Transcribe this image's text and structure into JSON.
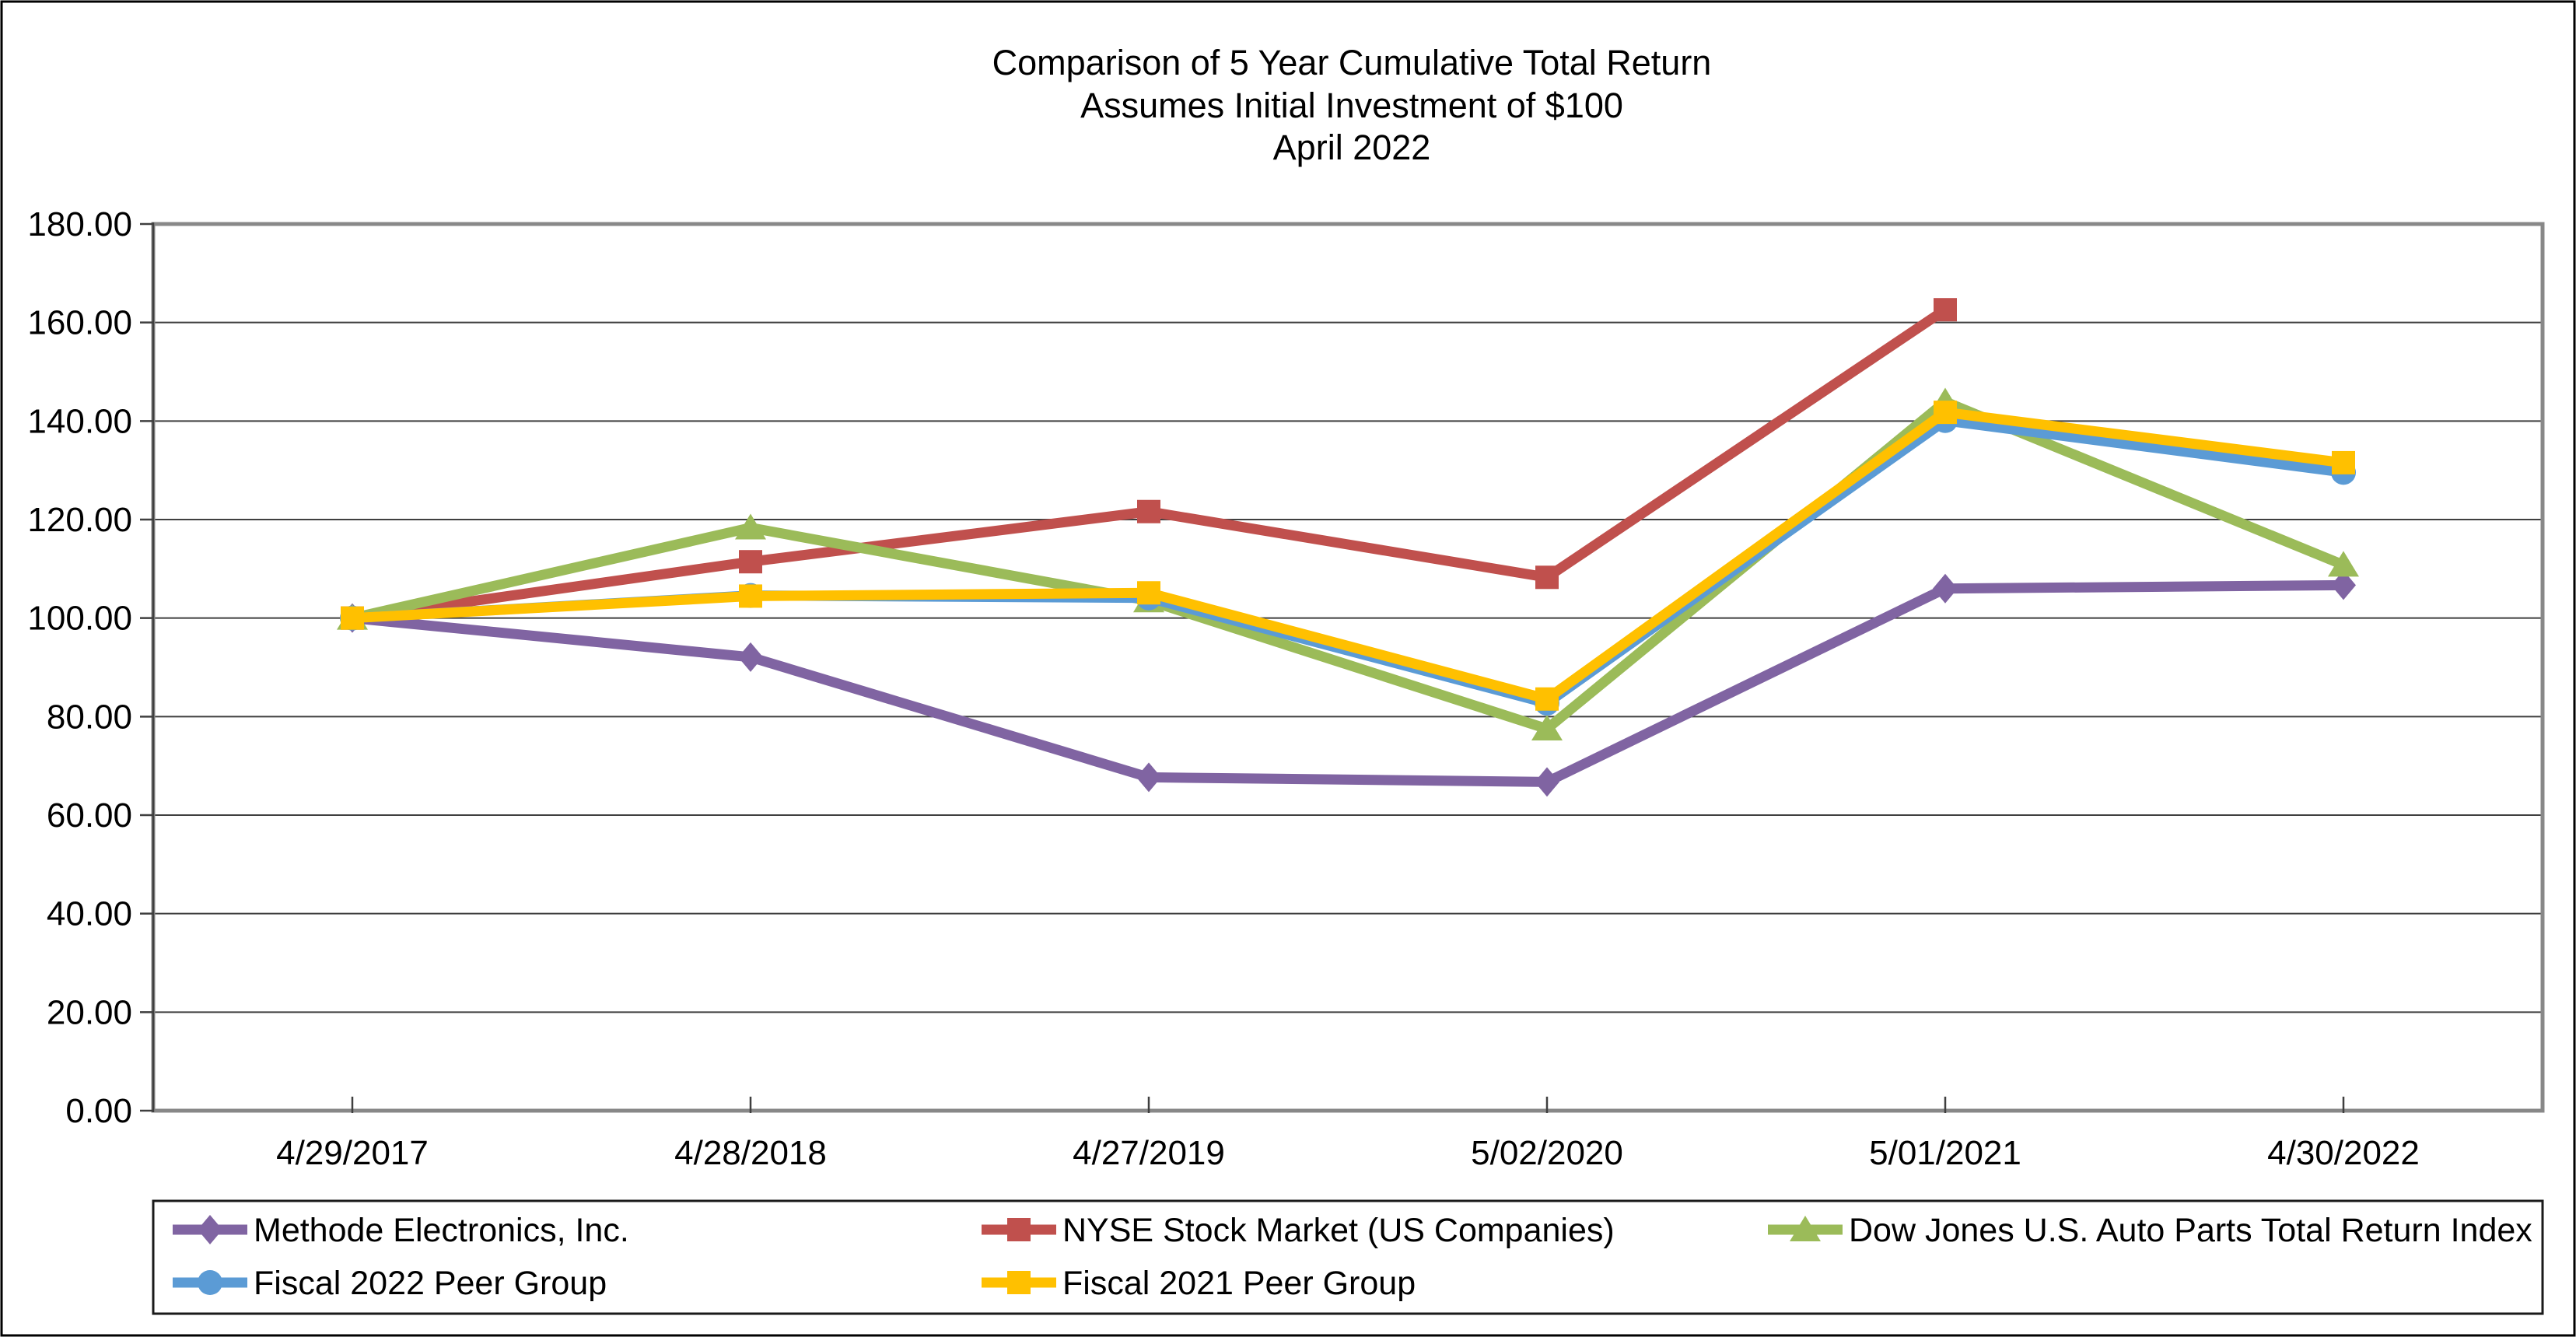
{
  "title": {
    "line1": "Comparison of 5 Year Cumulative Total Return",
    "line2": "Assumes Initial Investment of $100",
    "line3": "April 2022"
  },
  "chart_data": {
    "type": "line",
    "categories": [
      "4/29/2017",
      "4/28/2018",
      "4/27/2019",
      "5/02/2020",
      "5/01/2021",
      "4/30/2022"
    ],
    "series": [
      {
        "name": "Methode Electronics, Inc.",
        "marker": "diamond",
        "color": "#8064A2",
        "values": [
          100.0,
          92.07,
          67.67,
          66.74,
          105.99,
          106.68
        ]
      },
      {
        "name": "NYSE Stock Market (US Companies)",
        "marker": "square",
        "color": "#C0504D",
        "values": [
          100.0,
          111.44,
          121.62,
          108.27,
          162.6,
          null
        ]
      },
      {
        "name": "Dow Jones U.S. Auto Parts Total Return Index",
        "marker": "triangle",
        "color": "#9BBB59",
        "values": [
          100.0,
          118.34,
          103.54,
          77.52,
          143.92,
          110.78
        ]
      },
      {
        "name": "Fiscal 2022 Peer Group",
        "marker": "circle",
        "color": "#5B9BD5",
        "values": [
          100.0,
          104.59,
          104.09,
          82.73,
          140.09,
          129.58
        ]
      },
      {
        "name": "Fiscal 2021 Peer Group",
        "marker": "square",
        "color": "#FFC000",
        "values": [
          100.0,
          104.46,
          105.12,
          83.57,
          141.77,
          131.54
        ]
      }
    ],
    "ylim": [
      0,
      180
    ],
    "ytick_step": 20,
    "ytick_labels": [
      "0.00",
      "20.00",
      "40.00",
      "60.00",
      "80.00",
      "100.00",
      "120.00",
      "140.00",
      "160.00",
      "180.00"
    ],
    "grid": true,
    "legend_position": "bottom",
    "xlabel": "",
    "ylabel": ""
  },
  "colors": {
    "gridline": "#3f3f3f",
    "plot_border": "#888888",
    "axis_line": "#3f3f3f",
    "text": "#000000",
    "background": "#ffffff",
    "legend_border": "#1a1a1a",
    "figure_border": "#000000"
  }
}
